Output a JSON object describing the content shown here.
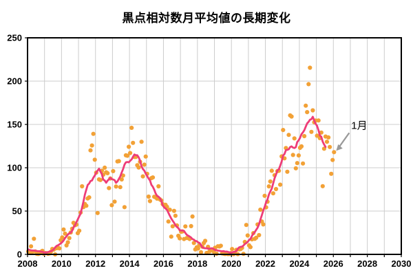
{
  "title": "黒点相対数月平均値の長期変化",
  "colors": {
    "background": "#FFFFFF",
    "scatter": "#F2A136",
    "line": "#EE3C77",
    "grid": "#CCCCCC",
    "frame": "#000000",
    "text": "#000000",
    "arrow": "#999999"
  },
  "chart_data": {
    "type": "scatter",
    "title": "黒点相対数月平均値の長期変化",
    "xlabel": "",
    "ylabel": "",
    "xlim": [
      2008,
      2030
    ],
    "ylim": [
      0,
      250
    ],
    "x_tick_labels": [
      "2008",
      "2010",
      "2012",
      "2014",
      "2016",
      "2018",
      "2020",
      "2022",
      "2024",
      "2026",
      "2028",
      "2030"
    ],
    "x_tick_step_years": 2,
    "x_grid_step_years": 1,
    "y_tick_labels": [
      "0",
      "50",
      "100",
      "150",
      "200",
      "250"
    ],
    "y_tick_step": 50,
    "grid": true,
    "legend": "none",
    "annotation": {
      "label": "1月",
      "points_to": "latest monthly value (2026-01)",
      "value": 118.0
    },
    "series": [
      {
        "name": "monthly_mean_sunspot_number",
        "style": "scatter",
        "start_month": "2008-01",
        "end_month": "2026-01",
        "values": [
          3.4,
          2.1,
          9.3,
          2.9,
          18.0,
          3.4,
          0.8,
          0.5,
          1.1,
          2.9,
          4.1,
          0.8,
          1.5,
          1.4,
          0.7,
          1.2,
          2.9,
          6.3,
          5.5,
          0.0,
          7.1,
          7.7,
          6.9,
          16.3,
          19.5,
          28.7,
          24.0,
          10.4,
          13.9,
          18.8,
          25.2,
          29.6,
          36.4,
          33.6,
          34.4,
          24.5,
          27.3,
          48.3,
          78.6,
          54.5,
          58.2,
          56.1,
          64.5,
          65.8,
          120.1,
          125.7,
          139.1,
          109.3,
          94.4,
          47.8,
          86.6,
          85.9,
          96.5,
          92.0,
          100.1,
          94.8,
          93.7,
          76.5,
          87.6,
          56.8,
          96.1,
          60.9,
          78.3,
          107.3,
          107.6,
          77.6,
          86.5,
          91.0,
          54.5,
          114.4,
          113.9,
          124.2,
          117.0,
          146.1,
          128.7,
          112.5,
          112.5,
          102.9,
          100.2,
          106.9,
          130.0,
          90.0,
          103.6,
          112.9,
          93.0,
          66.7,
          61.5,
          88.0,
          88.8,
          66.5,
          65.8,
          64.4,
          78.6,
          63.6,
          62.2,
          58.0,
          56.6,
          57.2,
          54.9,
          37.9,
          51.5,
          20.5,
          32.4,
          50.2,
          44.6,
          33.4,
          21.4,
          18.5,
          26.1,
          26.4,
          17.7,
          32.3,
          18.9,
          19.2,
          17.8,
          32.6,
          43.7,
          13.2,
          5.7,
          8.2,
          6.8,
          10.7,
          2.5,
          8.9,
          13.1,
          15.6,
          1.6,
          8.7,
          3.3,
          4.9,
          4.9,
          3.1,
          7.7,
          0.8,
          9.4,
          9.1,
          9.9,
          1.2,
          0.9,
          0.5,
          1.1,
          0.4,
          0.5,
          1.5,
          6.2,
          0.2,
          1.5,
          5.2,
          0.2,
          5.8,
          6.1,
          7.5,
          0.6,
          14.4,
          34.0,
          21.8,
          10.4,
          8.4,
          17.3,
          24.5,
          17.9,
          19.2,
          34.5,
          22.2,
          51.6,
          37.9,
          34.6,
          67.6,
          54.3,
          60.8,
          78.5,
          84.1,
          96.5,
          70.5,
          91.4,
          75.4,
          96.1,
          96.5,
          80.5,
          113.1,
          143.6,
          110.9,
          122.8,
          95.4,
          137.9,
          160.5,
          159.1,
          114.8,
          133.9,
          99.4,
          105.4,
          114.2,
          123.0,
          124.7,
          104.9,
          136.5,
          171.7,
          164.2,
          196.5,
          215.5,
          141.4,
          166.3,
          152.5,
          154.5,
          137.0,
          154.6,
          134.2,
          140.6,
          78.7,
          122.0,
          136.0,
          130.0,
          135.0,
          124.0,
          93.0,
          109.0,
          118.0
        ]
      },
      {
        "name": "smoothed_13_month_running_mean",
        "style": "line",
        "derived_from": "monthly_mean_sunspot_number",
        "window_months": 13
      }
    ]
  }
}
